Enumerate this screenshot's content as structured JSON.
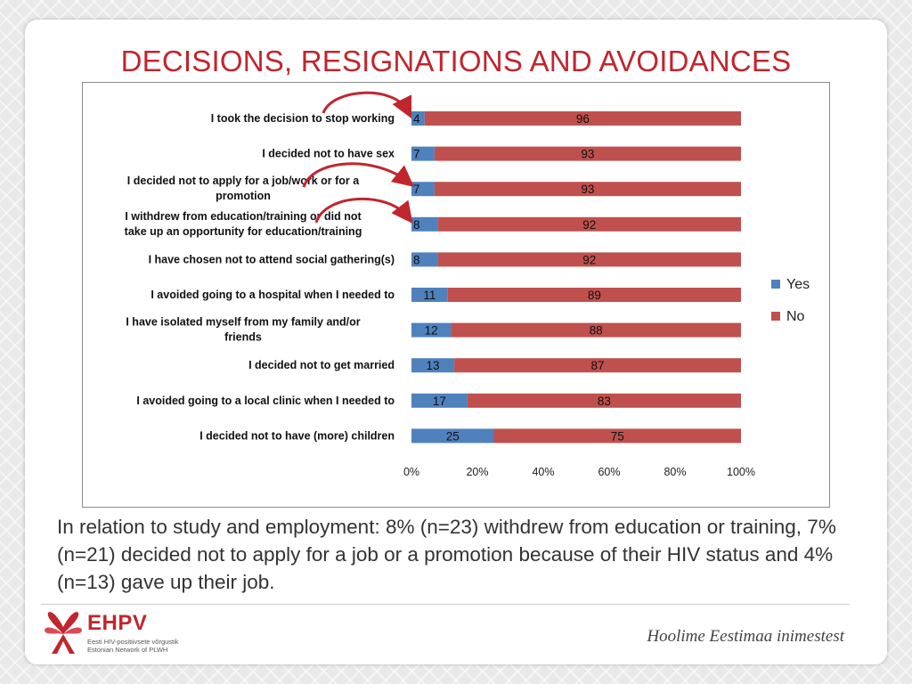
{
  "slide": {
    "title": "DECISIONS, RESIGNATIONS AND AVOIDANCES",
    "caption": "In relation to study and employment: 8% (n=23) withdrew from education or training, 7% (n=21) decided not to apply for a job or a promotion because of their HIV status and 4% (n=13) gave up their job.",
    "slogan": "Hoolime Eestimaa  inimestest",
    "logo": {
      "name": "EHPV",
      "line1": "Eesti HIV-positiivsete võrgustik",
      "line2": "Estonian Network of PLWH",
      "icon": "ribbon-logo-icon"
    }
  },
  "chart_data": {
    "type": "bar",
    "orientation": "horizontal",
    "stacked": "100%",
    "categories": [
      "I took the decision to stop working",
      "I decided not to have sex",
      "I decided not to apply for  a job/work or for  a promotion",
      "I withdrew from education/training or did  not take up  an opportunity for  education/training",
      "I have chosen not to attend social  gathering(s)",
      "I avoided going to a hospital when I needed to",
      "I have isolated myself  from my family  and/or friends",
      "I decided not to get married",
      "I avoided going to a local  clinic when I needed to",
      "I decided not to have (more) children"
    ],
    "category_lines": [
      [
        "I took the decision to stop working"
      ],
      [
        "I decided not to have sex"
      ],
      [
        "I decided not to apply for  a job/work or for  a",
        "promotion"
      ],
      [
        "I withdrew from education/training or did  not",
        "take up  an opportunity for  education/training"
      ],
      [
        "I have chosen not to attend social  gathering(s)"
      ],
      [
        "I avoided going to a hospital when I needed to"
      ],
      [
        "I have isolated myself  from my family  and/or",
        "friends"
      ],
      [
        "I decided not to get married"
      ],
      [
        "I avoided going to a local  clinic when I needed to"
      ],
      [
        "I decided not to have (more) children"
      ]
    ],
    "series": [
      {
        "name": "Yes",
        "color": "#4f81bd",
        "values": [
          4,
          7,
          7,
          8,
          8,
          11,
          12,
          13,
          17,
          25
        ]
      },
      {
        "name": "No",
        "color": "#c0504d",
        "values": [
          96,
          93,
          93,
          92,
          92,
          89,
          88,
          87,
          83,
          75
        ]
      }
    ],
    "x_ticks": [
      "0%",
      "20%",
      "40%",
      "60%",
      "80%",
      "100%"
    ],
    "xlim": [
      0,
      100
    ],
    "grid": false,
    "legend": "right",
    "annotations": "red curved arrows pointing to the first, third and fourth bars"
  }
}
